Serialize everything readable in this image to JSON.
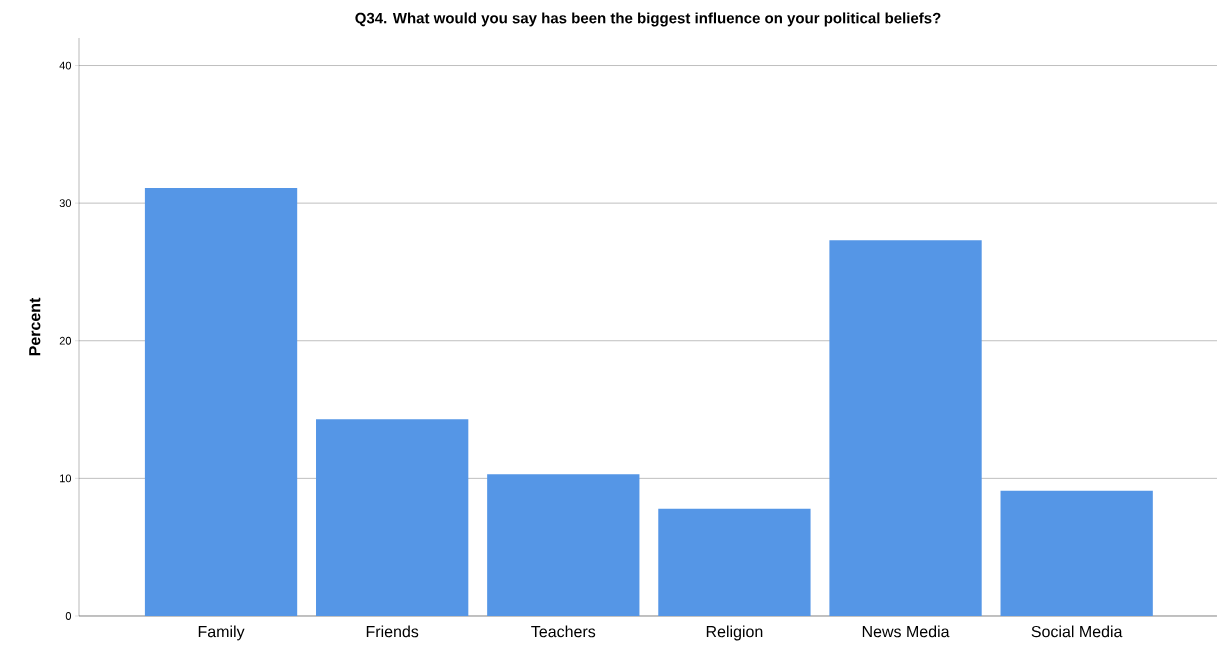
{
  "chart_data": {
    "type": "bar",
    "title": "Q34.  What would you say has been the biggest influence on your political beliefs?",
    "ylabel": "Percent",
    "categories": [
      "Family",
      "Friends",
      "Teachers",
      "Religion",
      "News Media",
      "Social Media"
    ],
    "values": [
      31.1,
      14.3,
      10.3,
      7.8,
      27.3,
      9.1
    ],
    "color": "#5596e6",
    "ylim": [
      0,
      42
    ],
    "yticks": [
      0,
      10,
      20,
      30,
      40
    ],
    "grid": "y"
  }
}
